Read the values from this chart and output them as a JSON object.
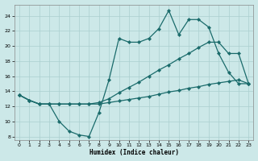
{
  "xlabel": "Humidex (Indice chaleur)",
  "bg_color": "#cce8e8",
  "line_color": "#1a6b6b",
  "grid_color": "#aacfcf",
  "xlim": [
    -0.5,
    23.5
  ],
  "ylim": [
    7.5,
    25.5
  ],
  "xticks": [
    0,
    1,
    2,
    3,
    4,
    5,
    6,
    7,
    8,
    9,
    10,
    11,
    12,
    13,
    14,
    15,
    16,
    17,
    18,
    19,
    20,
    21,
    22,
    23
  ],
  "yticks": [
    8,
    10,
    12,
    14,
    16,
    18,
    20,
    22,
    24
  ],
  "series1_x": [
    0,
    1,
    2,
    3,
    4,
    5,
    6,
    7,
    8,
    9,
    10,
    11,
    12,
    13,
    14,
    15,
    16,
    17,
    18,
    19,
    20,
    21,
    22,
    23
  ],
  "series1_y": [
    13.5,
    12.8,
    12.3,
    12.3,
    10.0,
    8.7,
    8.2,
    8.0,
    11.2,
    15.5,
    21.0,
    20.5,
    20.5,
    21.0,
    22.3,
    24.7,
    21.5,
    23.5,
    23.5,
    22.5,
    19.0,
    16.5,
    15.0,
    15.0
  ],
  "series2_x": [
    0,
    1,
    2,
    3,
    4,
    5,
    6,
    7,
    8,
    9,
    10,
    11,
    12,
    13,
    14,
    15,
    16,
    17,
    18,
    19,
    20,
    21,
    22,
    23
  ],
  "series2_y": [
    13.5,
    12.8,
    12.3,
    12.3,
    12.3,
    12.3,
    12.3,
    12.3,
    12.5,
    13.0,
    13.8,
    14.5,
    15.2,
    16.0,
    16.8,
    17.5,
    18.3,
    19.0,
    19.8,
    20.5,
    20.5,
    19.0,
    19.0,
    15.0
  ],
  "series3_x": [
    0,
    1,
    2,
    3,
    4,
    5,
    6,
    7,
    8,
    9,
    10,
    11,
    12,
    13,
    14,
    15,
    16,
    17,
    18,
    19,
    20,
    21,
    22,
    23
  ],
  "series3_y": [
    13.5,
    12.8,
    12.3,
    12.3,
    12.3,
    12.3,
    12.3,
    12.3,
    12.3,
    12.5,
    12.7,
    12.9,
    13.1,
    13.3,
    13.6,
    13.9,
    14.1,
    14.4,
    14.6,
    14.9,
    15.1,
    15.3,
    15.5,
    15.0
  ]
}
